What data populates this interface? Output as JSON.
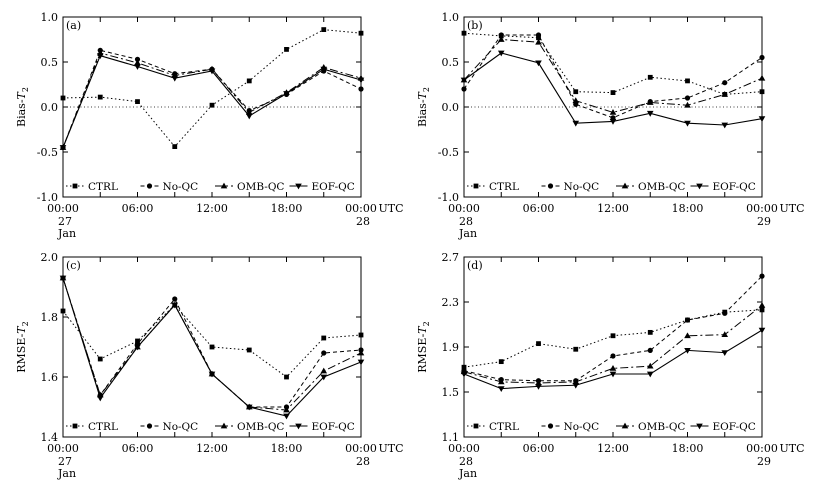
{
  "figure": {
    "x_tick_labels": [
      "00:00",
      "06:00",
      "12:00",
      "18:00",
      "00:00"
    ],
    "utc_label": "UTC",
    "legend": [
      "CTRL",
      "No-QC",
      "OMB-QC",
      "EOF-QC"
    ]
  },
  "chart_data": [
    {
      "type": "line",
      "panel_label": "(a)",
      "ylabel_main": "Bias-",
      "ylabel_var": "T",
      "ylabel_sub": "2",
      "ylim": [
        -1.0,
        1.0
      ],
      "yticks": [
        -1.0,
        -0.5,
        0.0,
        0.5,
        1.0
      ],
      "ytick_labels": [
        "-1.0",
        "-0.5",
        "0.0",
        "0.5",
        "1.0"
      ],
      "zero_line": true,
      "x": [
        0,
        3,
        6,
        9,
        12,
        15,
        18,
        21,
        24
      ],
      "x_start_date": [
        "27",
        "Jan"
      ],
      "x_end_date": [
        "28"
      ],
      "series": [
        {
          "name": "CTRL",
          "values": [
            0.1,
            0.11,
            0.06,
            -0.44,
            0.02,
            0.29,
            0.64,
            0.86,
            0.82
          ]
        },
        {
          "name": "No-QC",
          "values": [
            -0.45,
            0.63,
            0.53,
            0.37,
            0.42,
            -0.04,
            0.14,
            0.4,
            0.2
          ]
        },
        {
          "name": "OMB-QC",
          "values": [
            -0.45,
            0.6,
            0.49,
            0.35,
            0.42,
            -0.06,
            0.16,
            0.44,
            0.32
          ]
        },
        {
          "name": "EOF-QC",
          "values": [
            -0.45,
            0.57,
            0.45,
            0.32,
            0.4,
            -0.1,
            0.15,
            0.42,
            0.3
          ]
        }
      ]
    },
    {
      "type": "line",
      "panel_label": "(b)",
      "ylabel_main": "Bias-",
      "ylabel_var": "T",
      "ylabel_sub": "2",
      "ylim": [
        -1.0,
        1.0
      ],
      "yticks": [
        -1.0,
        -0.5,
        0.0,
        0.5,
        1.0
      ],
      "ytick_labels": [
        "-1.0",
        "-0.5",
        "0.0",
        "0.5",
        "1.0"
      ],
      "zero_line": true,
      "x": [
        0,
        3,
        6,
        9,
        12,
        15,
        18,
        21,
        24
      ],
      "x_start_date": [
        "28",
        "Jan"
      ],
      "x_end_date": [
        "29"
      ],
      "series": [
        {
          "name": "CTRL",
          "values": [
            0.82,
            0.79,
            0.77,
            0.17,
            0.16,
            0.33,
            0.29,
            0.14,
            0.17
          ]
        },
        {
          "name": "No-QC",
          "values": [
            0.2,
            0.8,
            0.8,
            0.03,
            -0.12,
            0.06,
            0.1,
            0.27,
            0.55
          ]
        },
        {
          "name": "OMB-QC",
          "values": [
            0.3,
            0.75,
            0.72,
            0.07,
            -0.06,
            0.05,
            0.02,
            0.14,
            0.32
          ]
        },
        {
          "name": "EOF-QC",
          "values": [
            0.3,
            0.6,
            0.49,
            -0.18,
            -0.16,
            -0.07,
            -0.18,
            -0.2,
            -0.13
          ]
        }
      ]
    },
    {
      "type": "line",
      "panel_label": "(c)",
      "ylabel_main": "RMSE-",
      "ylabel_var": "T",
      "ylabel_sub": "2",
      "ylim": [
        1.4,
        2.0
      ],
      "yticks": [
        1.4,
        1.6,
        1.8,
        2.0
      ],
      "ytick_labels": [
        "1.4",
        "1.6",
        "1.8",
        "2.0"
      ],
      "zero_line": false,
      "x": [
        0,
        3,
        6,
        9,
        12,
        15,
        18,
        21,
        24
      ],
      "x_start_date": [
        "27",
        "Jan"
      ],
      "x_end_date": [
        "28"
      ],
      "series": [
        {
          "name": "CTRL",
          "values": [
            1.82,
            1.66,
            1.72,
            1.84,
            1.7,
            1.69,
            1.6,
            1.73,
            1.74
          ]
        },
        {
          "name": "No-QC",
          "values": [
            1.93,
            1.54,
            1.71,
            1.86,
            1.61,
            1.5,
            1.5,
            1.68,
            1.69
          ]
        },
        {
          "name": "OMB-QC",
          "values": [
            1.93,
            1.54,
            1.7,
            1.84,
            1.61,
            1.5,
            1.49,
            1.62,
            1.68
          ]
        },
        {
          "name": "EOF-QC",
          "values": [
            1.93,
            1.53,
            1.7,
            1.84,
            1.61,
            1.5,
            1.47,
            1.6,
            1.65
          ]
        }
      ]
    },
    {
      "type": "line",
      "panel_label": "(d)",
      "ylabel_main": "RMSE-",
      "ylabel_var": "T",
      "ylabel_sub": "2",
      "ylim": [
        1.1,
        2.7
      ],
      "yticks": [
        1.1,
        1.5,
        1.9,
        2.3,
        2.7
      ],
      "ytick_labels": [
        "1.1",
        "1.5",
        "1.9",
        "2.3",
        "2.7"
      ],
      "zero_line": false,
      "x": [
        0,
        3,
        6,
        9,
        12,
        15,
        18,
        21,
        24
      ],
      "x_start_date": [
        "28",
        "Jan"
      ],
      "x_end_date": [
        "29"
      ],
      "series": [
        {
          "name": "CTRL",
          "values": [
            1.72,
            1.77,
            1.93,
            1.88,
            2.0,
            2.03,
            2.14,
            2.21,
            2.23
          ]
        },
        {
          "name": "No-QC",
          "values": [
            1.69,
            1.61,
            1.6,
            1.6,
            1.82,
            1.87,
            2.14,
            2.2,
            2.53
          ]
        },
        {
          "name": "OMB-QC",
          "values": [
            1.68,
            1.59,
            1.58,
            1.59,
            1.71,
            1.73,
            2.0,
            2.01,
            2.27
          ]
        },
        {
          "name": "EOF-QC",
          "values": [
            1.66,
            1.53,
            1.55,
            1.56,
            1.66,
            1.66,
            1.87,
            1.85,
            2.05
          ]
        }
      ]
    }
  ]
}
